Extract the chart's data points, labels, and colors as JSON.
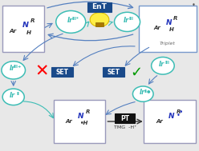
{
  "bg_color": "#e8e8e8",
  "teal": "#3dbdb5",
  "dark_blue": "#1a4a8a",
  "arrow_blue": "#5580c0",
  "box_edge_gray": "#9999bb",
  "box_edge_blue": "#7799cc",
  "white": "#ffffff",
  "imine_N_color": "#2233bb",
  "imine_text_color": "#333399",
  "EnT": "EnT",
  "SET": "SET",
  "PT": "PT",
  "TMG": "TMG",
  "Hplus": "-H⁺",
  "Triplet": "Triplet",
  "figw": 2.48,
  "figh": 1.89,
  "dpi": 100
}
